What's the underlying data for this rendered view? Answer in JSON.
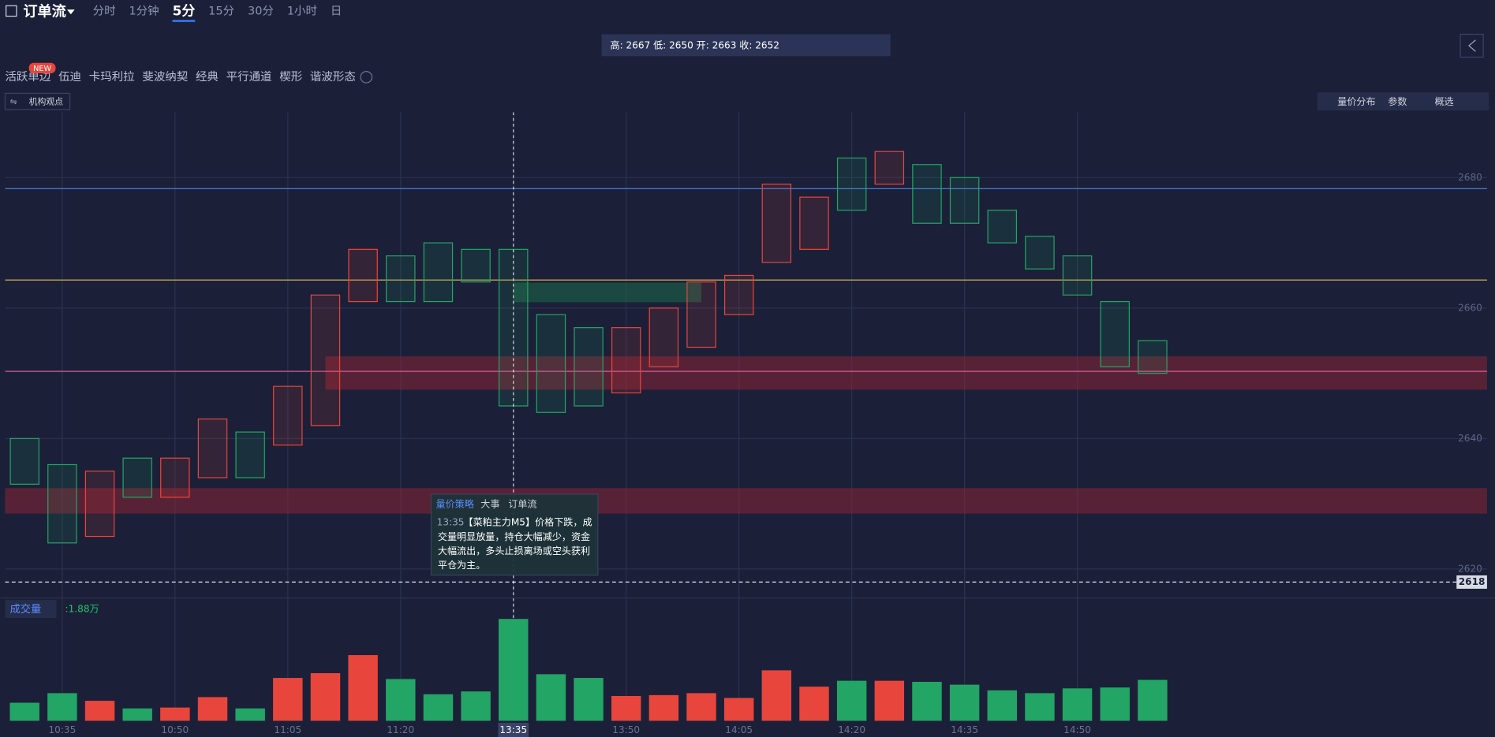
{
  "header": {
    "title": "订单流",
    "tabs": [
      "分时",
      "1分钟",
      "5分",
      "15分",
      "30分",
      "1小时",
      "日"
    ],
    "active_tab": "5分"
  },
  "info_box": "高: 2667 低: 2650 开: 2663 收: 2652",
  "indicators": [
    "活跃单边",
    "伍迪",
    "卡玛利拉",
    "斐波纳契",
    "经典",
    "平行通道",
    "楔形",
    "谐波形态"
  ],
  "badge": "NEW",
  "institution": "机构观点",
  "toolbar": [
    "量价分布",
    "参数",
    "概选"
  ],
  "chart_data": {
    "type": "candlestick",
    "categories": [
      null,
      "10:35",
      null,
      null,
      "10:50",
      null,
      null,
      "11:05",
      null,
      null,
      "11:20",
      null,
      null,
      "13:35",
      null,
      null,
      "13:50",
      null,
      null,
      "14:05",
      null,
      null,
      "14:20",
      null,
      null,
      "14:35",
      null,
      null,
      "14:50",
      null,
      null
    ],
    "series": [
      {
        "name": "high",
        "values": [
          2640,
          2636,
          2635,
          2637,
          2637,
          2643,
          2641,
          2648,
          2662,
          2669,
          2668,
          2670,
          2669,
          2669,
          2659,
          2657,
          2657,
          2660,
          2664,
          2665,
          2679,
          2677,
          2683,
          2684,
          2682,
          2680,
          2675,
          2671,
          2668,
          2661,
          2655
        ]
      },
      {
        "name": "low",
        "values": [
          2633,
          2624,
          2625,
          2631,
          2631,
          2634,
          2634,
          2639,
          2642,
          2661,
          2661,
          2661,
          2664,
          2645,
          2644,
          2645,
          2647,
          2651,
          2654,
          2659,
          2667,
          2669,
          2675,
          2679,
          2673,
          2673,
          2670,
          2666,
          2662,
          2651,
          2650
        ]
      }
    ],
    "colors": [
      "#22a565",
      "#22a565",
      "#e8453c",
      "#22a565",
      "#e8453c",
      "#e8453c",
      "#22a565",
      "#e8453c",
      "#e8453c",
      "#e8453c",
      "#22a565",
      "#22a565",
      "#22a565",
      "#22a565",
      "#22a565",
      "#22a565",
      "#e8453c",
      "#e8453c",
      "#e8453c",
      "#e8453c",
      "#e8453c",
      "#e8453c",
      "#22a565",
      "#e8453c",
      "#22a565",
      "#22a565",
      "#22a565",
      "#22a565",
      "#22a565",
      "#22a565",
      "#22a565"
    ],
    "ylim": [
      2616,
      2690
    ],
    "yticks": [
      2620,
      2640,
      2660,
      2680
    ],
    "current_price": 2618,
    "levels": [
      {
        "value": 2678.3,
        "color": "#4a78d0"
      },
      {
        "value": 2664.3,
        "color": "#d8b15a"
      },
      {
        "value": 2650.3,
        "color": "#d85a9a"
      }
    ],
    "zones": [
      {
        "range": [
          2647.5,
          2652.6
        ],
        "color": "#8a2434"
      },
      {
        "range": [
          2628.5,
          2632.4
        ],
        "color": "#8a2434"
      },
      {
        "range": [
          2660.9,
          2663.9
        ],
        "color": "#1d6a4a"
      }
    ],
    "volume": {
      "label": "成交量",
      "value_label": ":1.88万",
      "values": [
        8300,
        12700,
        9200,
        5700,
        6100,
        10900,
        5700,
        19700,
        21900,
        30200,
        19200,
        12200,
        13500,
        46800,
        21400,
        19700,
        11400,
        11800,
        12700,
        10500,
        23200,
        15700,
        18400,
        18400,
        17900,
        16600,
        14000,
        12700,
        14900,
        15300,
        18800
      ]
    }
  },
  "tooltip": {
    "tabs": [
      "量价策略",
      "大事",
      "订单流"
    ],
    "time": "13:35",
    "lines": [
      "【菜粕主力M5】价格下跌，成",
      "交量明显放量，持仓大幅减少，资金",
      "大幅流出，多头止损离场或空头获利",
      "平仓为主。"
    ]
  }
}
